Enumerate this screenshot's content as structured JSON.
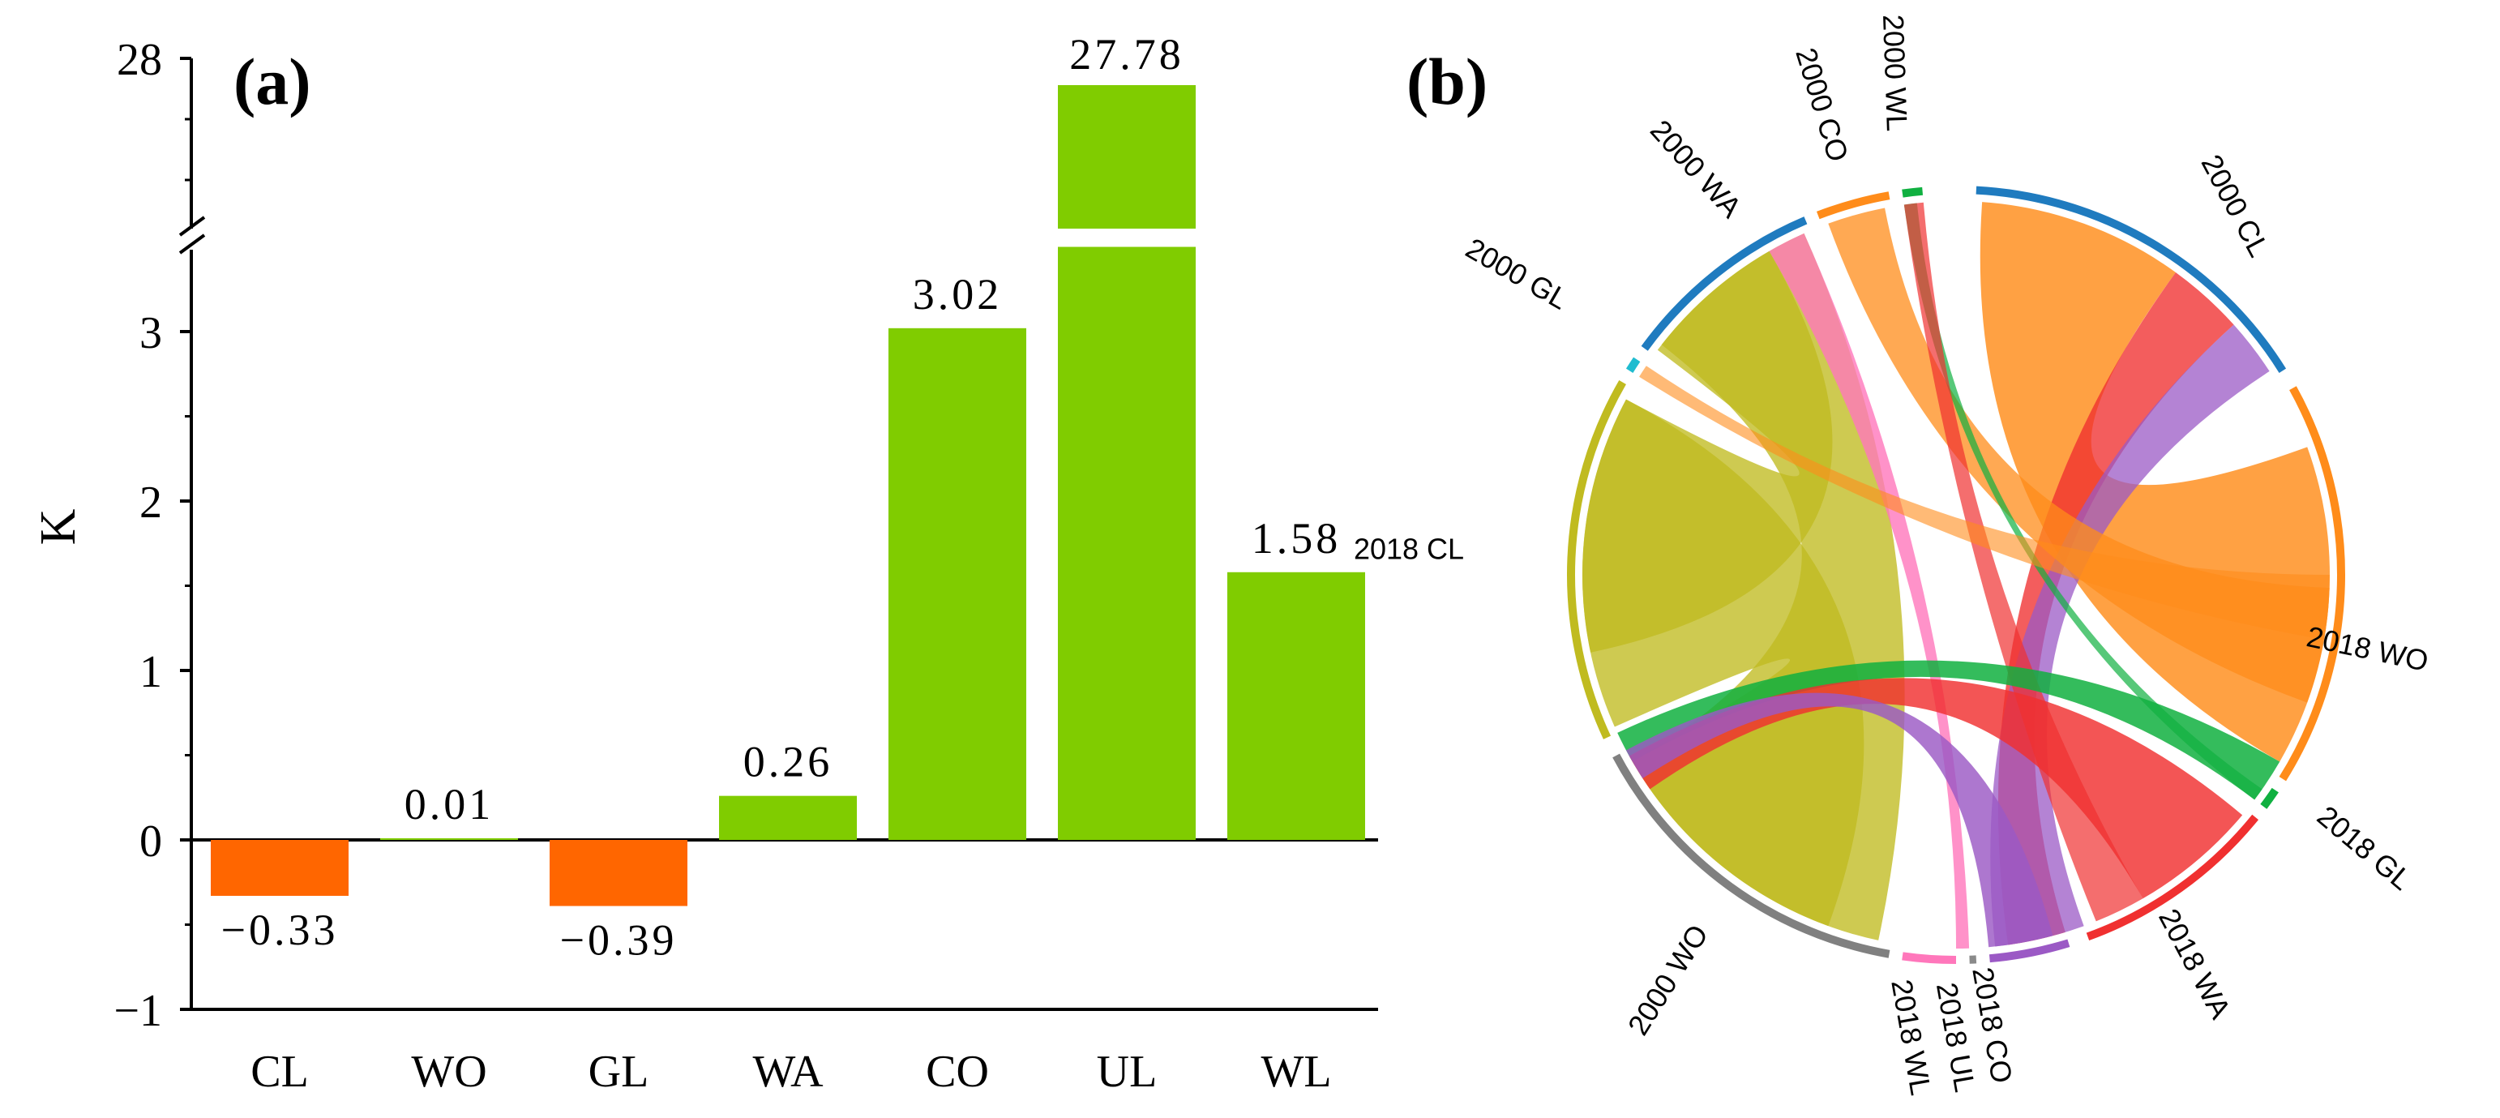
{
  "chart_data": [
    {
      "panel_label": "(a)",
      "type": "bar",
      "title": "",
      "xlabel": "",
      "ylabel": "K",
      "categories": [
        "CL",
        "WO",
        "GL",
        "WA",
        "CO",
        "UL",
        "WL"
      ],
      "values": [
        -0.33,
        0.01,
        -0.39,
        0.26,
        3.02,
        27.78,
        1.58
      ],
      "value_labels": [
        "−0.33",
        "0.01",
        "−0.39",
        "0.26",
        "3.02",
        "27.78",
        "1.58"
      ],
      "y_ticks": [
        "−1",
        "0",
        "1",
        "2",
        "3",
        "28"
      ],
      "ylim": [
        -1,
        28
      ],
      "axis_break": [
        3.5,
        27.5
      ],
      "colors": {
        "negative": "#ff6600",
        "positive": "#80cc00"
      }
    },
    {
      "panel_label": "(b)",
      "type": "chord",
      "title": "",
      "sectors": [
        {
          "label": "2000 CL",
          "color": "#1f7bbf"
        },
        {
          "label": "2018 WO",
          "color": "#ff8c1a"
        },
        {
          "label": "2018 GL",
          "color": "#10b040"
        },
        {
          "label": "2018 WA",
          "color": "#f03030"
        },
        {
          "label": "2018 CO",
          "color": "#9b59c5"
        },
        {
          "label": "2018 UL",
          "color": "#8a8a8a"
        },
        {
          "label": "2018 WL",
          "color": "#ff77bb"
        },
        {
          "label": "2000 WO",
          "color": "#808080"
        },
        {
          "label": "2018 CL",
          "color": "#c0bb20"
        },
        {
          "label": "2000 GL",
          "color": "#20bcd0"
        },
        {
          "label": "2000 WA",
          "color": "#1f7bbf"
        },
        {
          "label": "2000 CO",
          "color": "#ff8c1a"
        },
        {
          "label": "2000 WL",
          "color": "#10b040"
        }
      ]
    }
  ]
}
